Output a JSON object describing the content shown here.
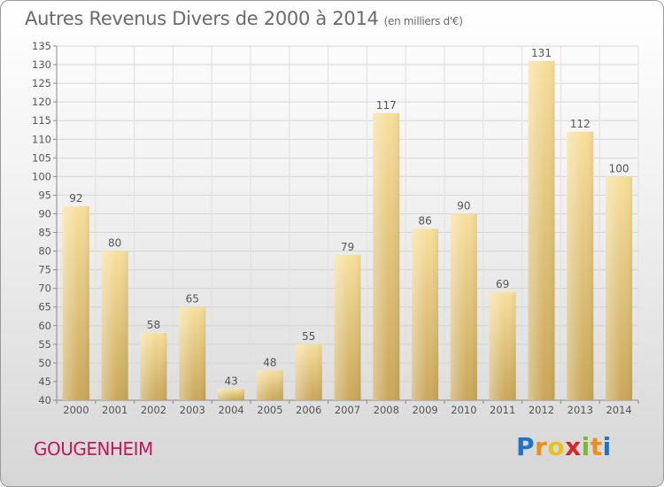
{
  "header": {
    "title": "Autres Revenus Divers de 2000 à 2014",
    "unit": "(en milliers d'€)"
  },
  "footer": {
    "commune": "GOUGENHEIM",
    "brand": [
      "P",
      "r",
      "o",
      "x",
      "i",
      "t",
      "i"
    ],
    "brand_colors": [
      "#1e73c8",
      "#f08c1a",
      "#e6c21a",
      "#d62728",
      "#7ab929",
      "#f08c1a",
      "#1e73c8"
    ]
  },
  "chart_data": {
    "type": "bar",
    "title": "Autres Revenus Divers de 2000 à 2014",
    "categories": [
      "2000",
      "2001",
      "2002",
      "2003",
      "2004",
      "2005",
      "2006",
      "2007",
      "2008",
      "2009",
      "2010",
      "2011",
      "2012",
      "2013",
      "2014"
    ],
    "values": [
      92,
      80,
      58,
      65,
      43,
      48,
      55,
      79,
      117,
      86,
      90,
      69,
      131,
      112,
      100
    ],
    "ylim": [
      40,
      135
    ],
    "yticks": [
      40,
      45,
      50,
      55,
      60,
      65,
      70,
      75,
      80,
      85,
      90,
      95,
      100,
      105,
      110,
      115,
      120,
      125,
      130,
      135
    ],
    "grid": true,
    "bar_color": "#e8c97c",
    "data_labels": true
  }
}
